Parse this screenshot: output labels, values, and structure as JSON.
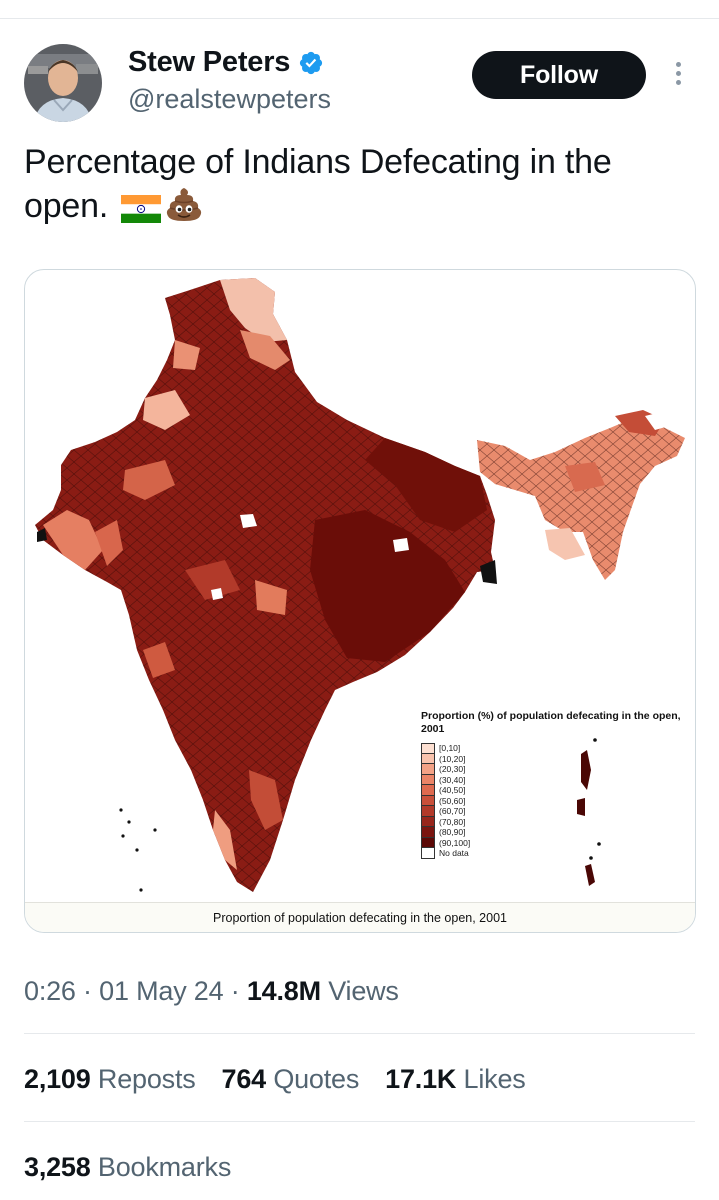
{
  "author": {
    "display_name": "Stew Peters",
    "handle": "@realstewpeters",
    "verified": true,
    "avatar_icon": "avatar-photo"
  },
  "header": {
    "follow_label": "Follow",
    "more_icon": "more-vertical-icon"
  },
  "tweet": {
    "text": "Percentage of Indians Defecating in the open.",
    "emojis": [
      "india-flag-icon",
      "pile-of-poo-icon"
    ]
  },
  "media": {
    "legend_title": "Proportion  (%) of population defecating in the open, 2001",
    "legend": [
      {
        "label": "[0,10]",
        "color": "#fde0d2"
      },
      {
        "label": "(10,20]",
        "color": "#f9c3ad"
      },
      {
        "label": "(20,30]",
        "color": "#f3a286"
      },
      {
        "label": "(30,40]",
        "color": "#ea8467"
      },
      {
        "label": "(40,50]",
        "color": "#de6a4f"
      },
      {
        "label": "(50,60]",
        "color": "#c9503a"
      },
      {
        "label": "(60,70]",
        "color": "#b23a2a"
      },
      {
        "label": "(70,80]",
        "color": "#97261c"
      },
      {
        "label": "(80,90]",
        "color": "#7a1510"
      },
      {
        "label": "(90,100]",
        "color": "#5c0906"
      },
      {
        "label": "No data",
        "color": "#ffffff"
      }
    ],
    "caption": "Proportion of population defecating in the open, 2001"
  },
  "meta": {
    "time": "0:26",
    "date": "01 May 24",
    "views_count": "14.8M",
    "views_label": "Views"
  },
  "stats": {
    "reposts_count": "2,109",
    "reposts_label": "Reposts",
    "quotes_count": "764",
    "quotes_label": "Quotes",
    "likes_count": "17.1K",
    "likes_label": "Likes",
    "bookmarks_count": "3,258",
    "bookmarks_label": "Bookmarks"
  },
  "colors": {
    "follow_bg": "#0f1419",
    "verified": "#1d9bf0",
    "secondary_text": "#536471"
  }
}
